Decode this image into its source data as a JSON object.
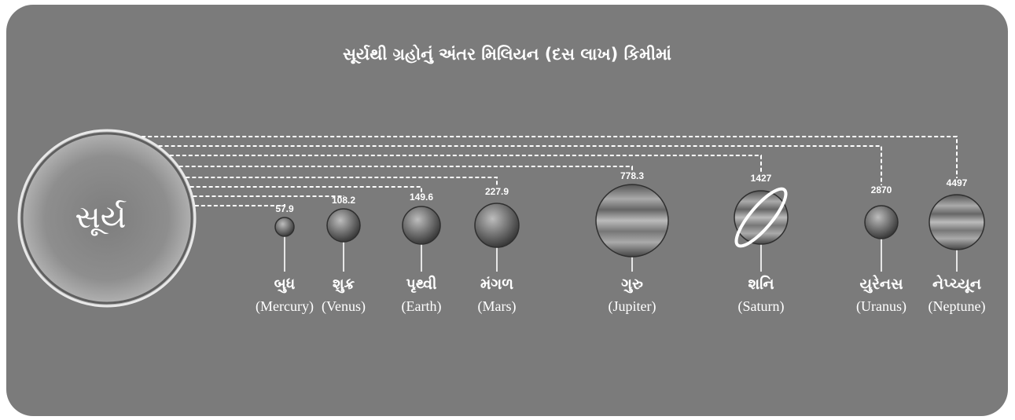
{
  "title": "સૂર્યથી ગ્રહોનું અંતર મિલિયન (દસ લાખ) કિમીમાં",
  "sun": "સૂર્ય",
  "planets": [
    {
      "name": "બુધ",
      "english": "(Mercury)",
      "distance": 57.9
    },
    {
      "name": "શુક્ર",
      "english": "(Venus)",
      "distance": 108.2
    },
    {
      "name": "પૃથ્વી",
      "english": "(Earth)",
      "distance": 149.6
    },
    {
      "name": "મંગળ",
      "english": "(Mars)",
      "distance": 227.9
    },
    {
      "name": "ગુરુ",
      "english": "(Jupiter)",
      "distance": 778.3
    },
    {
      "name": "શનિ",
      "english": "(Saturn)",
      "distance": 1427
    },
    {
      "name": "યુરેનસ",
      "english": "(Uranus)",
      "distance": 2870
    },
    {
      "name": "નેપ્ચ્યૂન",
      "english": "(Neptune)",
      "distance": 4497
    }
  ]
}
